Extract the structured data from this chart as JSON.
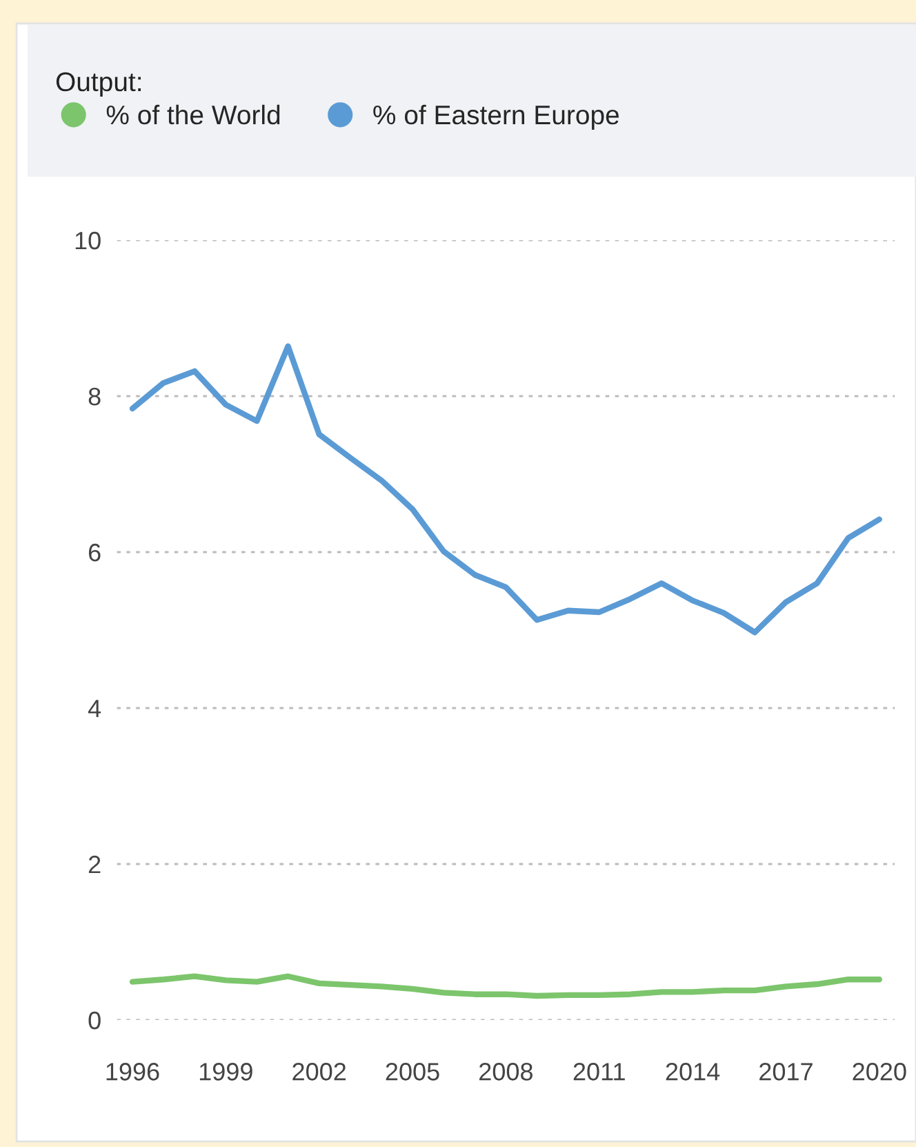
{
  "chart_data": {
    "type": "line",
    "legend_title": "Output:",
    "legend": "top left",
    "grid": "y",
    "x": [
      1996,
      1997,
      1998,
      1999,
      2000,
      2001,
      2002,
      2003,
      2004,
      2005,
      2006,
      2007,
      2008,
      2009,
      2010,
      2011,
      2012,
      2013,
      2014,
      2015,
      2016,
      2017,
      2018,
      2019,
      2020
    ],
    "series": [
      {
        "name": "% of the World",
        "color": "#7cc56c",
        "values": [
          0.49,
          0.52,
          0.56,
          0.51,
          0.49,
          0.56,
          0.47,
          0.45,
          0.43,
          0.4,
          0.35,
          0.33,
          0.33,
          0.31,
          0.32,
          0.32,
          0.33,
          0.36,
          0.36,
          0.38,
          0.38,
          0.43,
          0.46,
          0.52,
          0.52
        ]
      },
      {
        "name": "% of Eastern Europe",
        "color": "#5b9bd5",
        "values": [
          7.84,
          8.17,
          8.32,
          7.89,
          7.68,
          8.64,
          7.51,
          7.21,
          6.92,
          6.55,
          6.01,
          5.71,
          5.55,
          5.13,
          5.25,
          5.23,
          5.4,
          5.6,
          5.38,
          5.22,
          4.97,
          5.36,
          5.6,
          6.18,
          6.42
        ]
      }
    ],
    "xlim": [
      1995.5,
      2020.5
    ],
    "xticks": [
      1996,
      1999,
      2002,
      2005,
      2008,
      2011,
      2014,
      2017,
      2020
    ],
    "ylim": [
      0,
      10
    ],
    "yticks": [
      0,
      2,
      4,
      6,
      8,
      10
    ]
  }
}
